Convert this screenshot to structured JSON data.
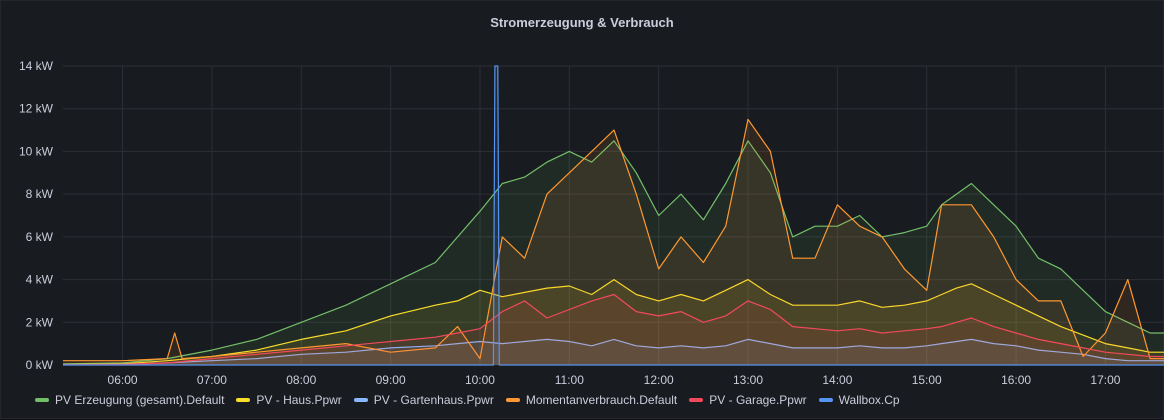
{
  "panel": {
    "title": "Stromerzeugung & Verbrauch"
  },
  "chart_data": {
    "type": "area",
    "title": "Stromerzeugung & Verbrauch",
    "y_unit": "kW",
    "ylim": [
      0,
      14
    ],
    "yticks": [
      "0 kW",
      "2 kW",
      "4 kW",
      "6 kW",
      "8 kW",
      "10 kW",
      "12 kW",
      "14 kW"
    ],
    "xlim": [
      "05:20",
      "17:40"
    ],
    "xticks": [
      "06:00",
      "07:00",
      "08:00",
      "09:00",
      "10:00",
      "11:00",
      "12:00",
      "13:00",
      "14:00",
      "15:00",
      "16:00",
      "17:00"
    ],
    "grid": true,
    "legend_position": "bottom",
    "series": [
      {
        "name": "PV Erzeugung (gesamt).Default",
        "color": "#73bf69",
        "x": [
          "05:20",
          "06:00",
          "06:30",
          "07:00",
          "07:30",
          "08:00",
          "08:30",
          "09:00",
          "09:30",
          "09:45",
          "10:00",
          "10:15",
          "10:30",
          "10:45",
          "11:00",
          "11:15",
          "11:30",
          "11:45",
          "12:00",
          "12:15",
          "12:30",
          "12:45",
          "13:00",
          "13:15",
          "13:30",
          "13:45",
          "14:00",
          "14:15",
          "14:30",
          "14:45",
          "15:00",
          "15:10",
          "15:20",
          "15:30",
          "15:45",
          "16:00",
          "16:15",
          "16:30",
          "16:45",
          "17:00",
          "17:15",
          "17:30",
          "17:40"
        ],
        "values": [
          0.05,
          0.1,
          0.3,
          0.7,
          1.2,
          2.0,
          2.8,
          3.8,
          4.8,
          6.0,
          7.2,
          8.5,
          8.8,
          9.5,
          10.0,
          9.5,
          10.5,
          9.0,
          7.0,
          8.0,
          6.8,
          8.5,
          10.5,
          9.0,
          6.0,
          6.5,
          6.5,
          7.0,
          6.0,
          6.2,
          6.5,
          7.5,
          8.0,
          8.5,
          7.5,
          6.5,
          5.0,
          4.5,
          3.5,
          2.5,
          2.0,
          1.5,
          1.5
        ]
      },
      {
        "name": "PV - Haus.Ppwr",
        "color": "#fade2a",
        "x": [
          "05:20",
          "06:00",
          "06:30",
          "07:00",
          "07:30",
          "08:00",
          "08:30",
          "09:00",
          "09:30",
          "09:45",
          "10:00",
          "10:15",
          "10:30",
          "10:45",
          "11:00",
          "11:15",
          "11:30",
          "11:45",
          "12:00",
          "12:15",
          "12:30",
          "12:45",
          "13:00",
          "13:15",
          "13:30",
          "13:45",
          "14:00",
          "14:15",
          "14:30",
          "14:45",
          "15:00",
          "15:10",
          "15:20",
          "15:30",
          "15:45",
          "16:00",
          "16:15",
          "16:30",
          "16:45",
          "17:00",
          "17:15",
          "17:30",
          "17:40"
        ],
        "values": [
          0.02,
          0.05,
          0.2,
          0.4,
          0.7,
          1.2,
          1.6,
          2.3,
          2.8,
          3.0,
          3.5,
          3.2,
          3.4,
          3.6,
          3.7,
          3.3,
          4.0,
          3.3,
          3.0,
          3.3,
          3.0,
          3.5,
          4.0,
          3.3,
          2.8,
          2.8,
          2.8,
          3.0,
          2.7,
          2.8,
          3.0,
          3.3,
          3.6,
          3.8,
          3.3,
          2.8,
          2.3,
          1.8,
          1.4,
          1.0,
          0.8,
          0.6,
          0.6
        ]
      },
      {
        "name": "PV - Gartenhaus.Ppwr",
        "color": "#8ab8ff",
        "x": [
          "05:20",
          "06:00",
          "06:30",
          "07:00",
          "07:30",
          "08:00",
          "08:30",
          "09:00",
          "09:30",
          "09:45",
          "10:00",
          "10:15",
          "10:30",
          "10:45",
          "11:00",
          "11:15",
          "11:30",
          "11:45",
          "12:00",
          "12:15",
          "12:30",
          "12:45",
          "13:00",
          "13:15",
          "13:30",
          "13:45",
          "14:00",
          "14:15",
          "14:30",
          "14:45",
          "15:00",
          "15:10",
          "15:20",
          "15:30",
          "15:45",
          "16:00",
          "16:15",
          "16:30",
          "16:45",
          "17:00",
          "17:15",
          "17:30",
          "17:40"
        ],
        "values": [
          0.01,
          0.03,
          0.1,
          0.2,
          0.3,
          0.5,
          0.6,
          0.8,
          0.9,
          1.0,
          1.1,
          1.0,
          1.1,
          1.2,
          1.1,
          0.9,
          1.2,
          0.9,
          0.8,
          0.9,
          0.8,
          0.9,
          1.2,
          1.0,
          0.8,
          0.8,
          0.8,
          0.9,
          0.8,
          0.8,
          0.9,
          1.0,
          1.1,
          1.2,
          1.0,
          0.9,
          0.7,
          0.6,
          0.5,
          0.3,
          0.2,
          0.2,
          0.2
        ]
      },
      {
        "name": "Momentanverbrauch.Default",
        "color": "#ff9830",
        "x": [
          "05:20",
          "06:00",
          "06:30",
          "06:35",
          "06:40",
          "07:00",
          "07:30",
          "08:00",
          "08:30",
          "09:00",
          "09:30",
          "09:45",
          "10:00",
          "10:15",
          "10:30",
          "10:45",
          "11:00",
          "11:15",
          "11:30",
          "11:45",
          "12:00",
          "12:15",
          "12:30",
          "12:45",
          "13:00",
          "13:15",
          "13:30",
          "13:45",
          "14:00",
          "14:15",
          "14:30",
          "14:45",
          "15:00",
          "15:10",
          "15:20",
          "15:30",
          "15:45",
          "16:00",
          "16:15",
          "16:30",
          "16:45",
          "17:00",
          "17:15",
          "17:30",
          "17:40"
        ],
        "values": [
          0.2,
          0.2,
          0.3,
          1.5,
          0.3,
          0.4,
          0.6,
          0.8,
          1.0,
          0.6,
          0.8,
          1.8,
          0.3,
          6.0,
          5.0,
          8.0,
          9.0,
          10.0,
          11.0,
          8.0,
          4.5,
          6.0,
          4.8,
          6.5,
          11.5,
          10.0,
          5.0,
          5.0,
          7.5,
          6.5,
          6.0,
          4.5,
          3.5,
          7.5,
          7.5,
          7.5,
          6.0,
          4.0,
          3.0,
          3.0,
          0.4,
          1.5,
          4.0,
          0.3,
          0.3
        ]
      },
      {
        "name": "PV - Garage.Ppwr",
        "color": "#f2495c",
        "x": [
          "05:20",
          "06:00",
          "06:30",
          "07:00",
          "07:30",
          "08:00",
          "08:30",
          "09:00",
          "09:30",
          "09:45",
          "10:00",
          "10:15",
          "10:30",
          "10:45",
          "11:00",
          "11:15",
          "11:30",
          "11:45",
          "12:00",
          "12:15",
          "12:30",
          "12:45",
          "13:00",
          "13:15",
          "13:30",
          "13:45",
          "14:00",
          "14:15",
          "14:30",
          "14:45",
          "15:00",
          "15:10",
          "15:20",
          "15:30",
          "15:45",
          "16:00",
          "16:15",
          "16:30",
          "16:45",
          "17:00",
          "17:15",
          "17:30",
          "17:40"
        ],
        "values": [
          0.01,
          0.03,
          0.1,
          0.3,
          0.5,
          0.7,
          0.9,
          1.1,
          1.3,
          1.5,
          1.7,
          2.5,
          3.0,
          2.2,
          2.6,
          3.0,
          3.3,
          2.5,
          2.3,
          2.5,
          2.0,
          2.3,
          3.0,
          2.6,
          1.8,
          1.7,
          1.6,
          1.7,
          1.5,
          1.6,
          1.7,
          1.8,
          2.0,
          2.2,
          1.8,
          1.5,
          1.2,
          1.0,
          0.8,
          0.6,
          0.5,
          0.4,
          0.4
        ]
      },
      {
        "name": "Wallbox.Cp",
        "color": "#5794f2",
        "x": [
          "05:20",
          "10:09",
          "10:10",
          "10:12",
          "10:13",
          "17:40"
        ],
        "values": [
          0,
          0,
          14,
          14,
          0,
          0
        ]
      }
    ]
  }
}
